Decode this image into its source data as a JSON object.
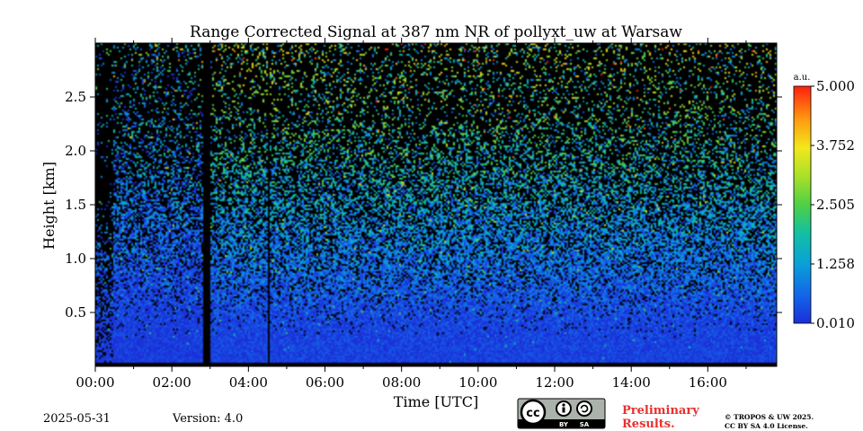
{
  "chart_data": {
    "type": "heatmap",
    "title": "Range Corrected Signal at 387 nm NR of pollyxt_uw at Warsaw",
    "xlabel": "Time [UTC]",
    "ylabel": "Height [km]",
    "xlim": [
      0,
      17.8
    ],
    "ylim": [
      0,
      3.0
    ],
    "x_ticks": [
      {
        "value": 0,
        "label": "00:00"
      },
      {
        "value": 2,
        "label": "02:00"
      },
      {
        "value": 4,
        "label": "04:00"
      },
      {
        "value": 6,
        "label": "06:00"
      },
      {
        "value": 8,
        "label": "08:00"
      },
      {
        "value": 10,
        "label": "10:00"
      },
      {
        "value": 12,
        "label": "12:00"
      },
      {
        "value": 14,
        "label": "14:00"
      },
      {
        "value": 16,
        "label": "16:00"
      }
    ],
    "y_ticks": [
      {
        "value": 0.5,
        "label": "0.5"
      },
      {
        "value": 1.0,
        "label": "1.0"
      },
      {
        "value": 1.5,
        "label": "1.5"
      },
      {
        "value": 2.0,
        "label": "2.0"
      },
      {
        "value": 2.5,
        "label": "2.5"
      }
    ],
    "colorbar": {
      "unit": "a.u.",
      "min": 0.01,
      "max": 5.0,
      "ticks": [
        {
          "value": 5.0,
          "label": "5.000"
        },
        {
          "value": 3.752,
          "label": "3.752"
        },
        {
          "value": 2.505,
          "label": "2.505"
        },
        {
          "value": 1.258,
          "label": "1.258"
        },
        {
          "value": 0.01,
          "label": "0.010"
        }
      ]
    },
    "data_gaps_utc": [
      [
        2.8,
        3.0
      ]
    ],
    "thin_gaps_utc": [
      4.5
    ]
  },
  "footer": {
    "date": "2025-05-31",
    "version": "Version: 4.0",
    "preliminary_line1": "Preliminary",
    "preliminary_line2": "Results.",
    "copyright_line1": "© TROPOS & UW 2025.",
    "copyright_line2": "CC BY SA 4.0 License."
  }
}
